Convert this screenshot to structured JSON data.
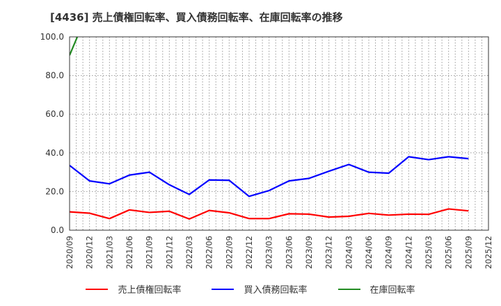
{
  "title": "[4436]  売上債権回転率、買入債務回転率、在庫回転率の推移",
  "chart_data": {
    "type": "line",
    "title": "[4436]  売上債権回転率、買入債務回転率、在庫回転率の推移",
    "xlabel": "",
    "ylabel": "",
    "ylim": [
      0,
      100
    ],
    "yticks": [
      "0.0",
      "20.0",
      "40.0",
      "60.0",
      "80.0",
      "100.0"
    ],
    "grid": true,
    "legend_position": "bottom",
    "categories": [
      "2020/09",
      "2020/12",
      "2021/03",
      "2021/06",
      "2021/09",
      "2021/12",
      "2022/03",
      "2022/06",
      "2022/09",
      "2022/12",
      "2023/03",
      "2023/06",
      "2023/09",
      "2023/12",
      "2024/03",
      "2024/06",
      "2024/09",
      "2024/12",
      "2025/03",
      "2025/06",
      "2025/09",
      "2025/12"
    ],
    "series": [
      {
        "name": "売上債権回転率",
        "color": "#ff0000",
        "values": [
          9.5,
          8.8,
          6.0,
          10.5,
          9.2,
          9.8,
          5.8,
          10.2,
          9.0,
          6.0,
          6.0,
          8.5,
          8.3,
          6.8,
          7.2,
          8.7,
          7.8,
          8.3,
          8.2,
          11.0,
          10.0,
          null
        ]
      },
      {
        "name": "買入債務回転率",
        "color": "#0000ff",
        "values": [
          33.5,
          25.5,
          24.0,
          28.5,
          30.0,
          23.5,
          18.5,
          26.0,
          25.8,
          17.5,
          20.5,
          25.5,
          26.8,
          30.5,
          34.0,
          30.0,
          29.5,
          38.0,
          36.5,
          38.0,
          37.0,
          null
        ]
      },
      {
        "name": "在庫回転率",
        "color": "#228b22",
        "values": [
          90.5,
          115.0,
          null,
          null,
          null,
          null,
          null,
          null,
          null,
          null,
          null,
          null,
          null,
          null,
          null,
          null,
          null,
          null,
          null,
          null,
          null,
          null
        ]
      }
    ]
  },
  "legend": [
    {
      "label": "売上債権回転率",
      "color": "#ff0000"
    },
    {
      "label": "買入債務回転率",
      "color": "#0000ff"
    },
    {
      "label": "在庫回転率",
      "color": "#228b22"
    }
  ]
}
